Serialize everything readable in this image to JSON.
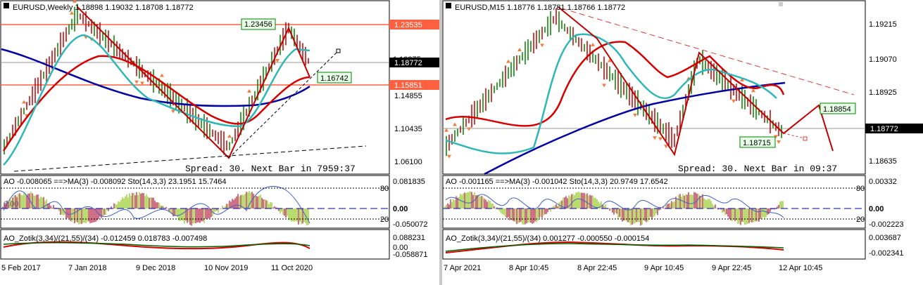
{
  "left": {
    "title": "EURUSD,Weekly  1.18898 1.19032 1.18708 1.18772",
    "price_labels": [
      "1.23535",
      "1.18772",
      "1.15851",
      "1.14855",
      "1.10435",
      "1.06100",
      "1.18375"
    ],
    "box_labels": [
      "1.23456",
      "1.16742"
    ],
    "spread_text": "Spread: 30. Next Bar in 7959:37",
    "ao_text": "AO -0.008065 ==>MA(3) -0.008092  Sto(14,3,3) 23.1951 15.7464",
    "ao_axis": [
      "0.081835",
      "80",
      "0.00",
      "0.00",
      "20",
      "-0.050072"
    ],
    "zotik_text": "AO_Zotik(3,34)/(21,55)/(34) -0.012459 0.018783 -0.007498",
    "zotik_axis": [
      "0.088231",
      "0.00",
      "-0.058871"
    ],
    "dates": [
      "5 Feb 2017",
      "7 Jan 2018",
      "9 Dec 2018",
      "10 Nov 2019",
      "11 Oct 2020"
    ]
  },
  "right": {
    "title": "EURUSD,M15  1.18776 1.18781 1.18766 1.18772",
    "price_labels": [
      "1.19215",
      "1.19070",
      "1.18925",
      "1.18772",
      "1.18635"
    ],
    "box_labels": [
      "1.18854",
      "1.18715"
    ],
    "spread_text": "Spread: 30. Next Bar in 09:37",
    "ao_text": "AO -0.001165 ==>MA(3) -0.001042  Sto(14,3,3) 20.9749 17.6542",
    "ao_axis": [
      "0.00332",
      "80",
      "0.00",
      "20",
      "-0.002223"
    ],
    "zotik_text": "AO_Zotik(3,34)/(21,55)/(34) 0.001277 -0.000550 -0.000154",
    "zotik_axis": [
      "0.003687",
      "-0.002341"
    ],
    "dates": [
      "7 Apr 2021",
      "8 Apr 10:45",
      "8 Apr 22:45",
      "9 Apr 10:45",
      "9 Apr 22:45",
      "12 Apr 10:45"
    ]
  },
  "colors": {
    "up_candle": "#008000",
    "down_candle": "#c00000",
    "ma_red": "#d40000",
    "ma_teal": "#2fb6b6",
    "ma_blue": "#0000a0",
    "level_line": "#ff6040",
    "fractal": "#f08040"
  }
}
